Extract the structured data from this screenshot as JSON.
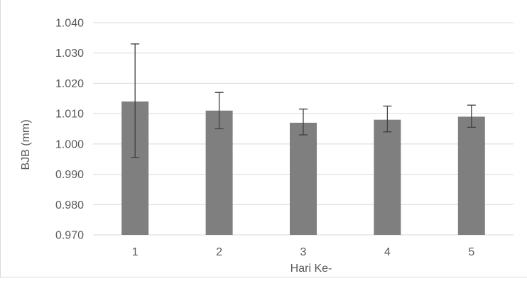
{
  "chart_data": {
    "type": "bar",
    "categories": [
      "1",
      "2",
      "3",
      "4",
      "5"
    ],
    "values": [
      1.014,
      1.011,
      1.007,
      1.008,
      1.009
    ],
    "error_low": [
      0.9955,
      1.005,
      1.003,
      1.004,
      1.0055
    ],
    "error_high": [
      1.033,
      1.017,
      1.0115,
      1.0125,
      1.0128
    ],
    "ylim": [
      0.97,
      1.04
    ],
    "yticks": [
      "0.970",
      "0.980",
      "0.990",
      "1.000",
      "1.010",
      "1.020",
      "1.030",
      "1.040"
    ],
    "xlabel": "Hari Ke-",
    "ylabel": "BJB (mm)",
    "title": "",
    "grid": true,
    "legend": "none",
    "colors": {
      "bar": "#7f7f7f",
      "grid": "#d9d9d9",
      "error": "#404040",
      "text": "#595959"
    }
  }
}
